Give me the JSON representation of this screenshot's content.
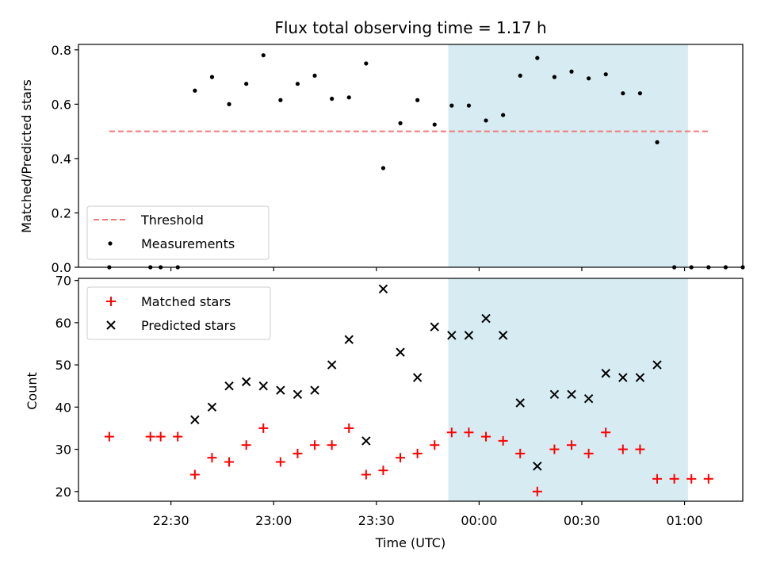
{
  "chart_data": {
    "title": "Flux total observing time = 1.17 h",
    "xlabel": "Time (UTC)",
    "x_tick_labels": [
      "22:30",
      "23:00",
      "23:30",
      "00:00",
      "00:30",
      "01:00"
    ],
    "x_tick_minutes": [
      1350,
      1380,
      1410,
      1440,
      1470,
      1500
    ],
    "xlim_minutes": [
      1323,
      1517
    ],
    "observing_window_minutes": [
      1431,
      1501
    ],
    "colors": {
      "threshold": "#f07a7a",
      "measurements": "#000000",
      "matched": "#ff0000",
      "predicted": "#000000",
      "window": "#add8e6"
    },
    "panels": [
      {
        "type": "scatter",
        "ylabel": "Matched/Predicted stars",
        "ylim": [
          0,
          0.82
        ],
        "y_ticks": [
          "0.0",
          "0.2",
          "0.4",
          "0.6",
          "0.8"
        ],
        "y_tick_values": [
          0,
          0.2,
          0.4,
          0.6,
          0.8
        ],
        "legend_position": "lower-left",
        "threshold": {
          "name": "Threshold",
          "value": 0.5,
          "x_range": [
            1332,
            1507
          ]
        },
        "series": [
          {
            "name": "Measurements",
            "x": [
              1332,
              1344,
              1347,
              1352,
              1357,
              1362,
              1367,
              1372,
              1377,
              1382,
              1387,
              1392,
              1397,
              1402,
              1407,
              1412,
              1417,
              1422,
              1427,
              1432,
              1437,
              1442,
              1447,
              1452,
              1457,
              1462,
              1467,
              1472,
              1477,
              1482,
              1487,
              1492,
              1497,
              1502,
              1507,
              1512,
              1517
            ],
            "y": [
              0.0,
              0.0,
              0.0,
              0.0,
              0.65,
              0.7,
              0.6,
              0.675,
              0.78,
              0.615,
              0.675,
              0.705,
              0.62,
              0.625,
              0.75,
              0.365,
              0.53,
              0.615,
              0.525,
              0.595,
              0.595,
              0.54,
              0.56,
              0.705,
              0.77,
              0.7,
              0.72,
              0.695,
              0.71,
              0.64,
              0.64,
              0.46,
              0.0,
              0.0,
              0.0,
              0.0,
              0.0
            ]
          }
        ]
      },
      {
        "type": "scatter",
        "ylabel": "Count",
        "ylim": [
          17.7,
          70.5
        ],
        "y_ticks": [
          "20",
          "30",
          "40",
          "50",
          "60",
          "70"
        ],
        "y_tick_values": [
          20,
          30,
          40,
          50,
          60,
          70
        ],
        "legend_position": "upper-left",
        "series": [
          {
            "name": "Matched stars",
            "marker": "plus",
            "x": [
              1332,
              1344,
              1347,
              1352,
              1357,
              1362,
              1367,
              1372,
              1377,
              1382,
              1387,
              1392,
              1397,
              1402,
              1407,
              1412,
              1417,
              1422,
              1427,
              1432,
              1437,
              1442,
              1447,
              1452,
              1457,
              1462,
              1467,
              1472,
              1477,
              1482,
              1487,
              1492,
              1497,
              1502,
              1507
            ],
            "y": [
              33,
              33,
              33,
              33,
              24,
              28,
              27,
              31,
              35,
              27,
              29,
              31,
              31,
              35,
              24,
              25,
              28,
              29,
              31,
              34,
              34,
              33,
              32,
              29,
              20,
              30,
              31,
              29,
              34,
              30,
              30,
              23,
              23,
              23,
              23
            ]
          },
          {
            "name": "Predicted stars",
            "marker": "x",
            "x": [
              1357,
              1362,
              1367,
              1372,
              1377,
              1382,
              1387,
              1392,
              1397,
              1402,
              1407,
              1412,
              1417,
              1422,
              1427,
              1432,
              1437,
              1442,
              1447,
              1452,
              1457,
              1462,
              1467,
              1472,
              1477,
              1482,
              1487,
              1492
            ],
            "y": [
              37,
              40,
              45,
              46,
              45,
              44,
              43,
              44,
              50,
              56,
              32,
              68,
              53,
              47,
              59,
              57,
              57,
              61,
              57,
              41,
              26,
              43,
              43,
              42,
              48,
              47,
              47,
              50
            ]
          }
        ]
      }
    ]
  }
}
